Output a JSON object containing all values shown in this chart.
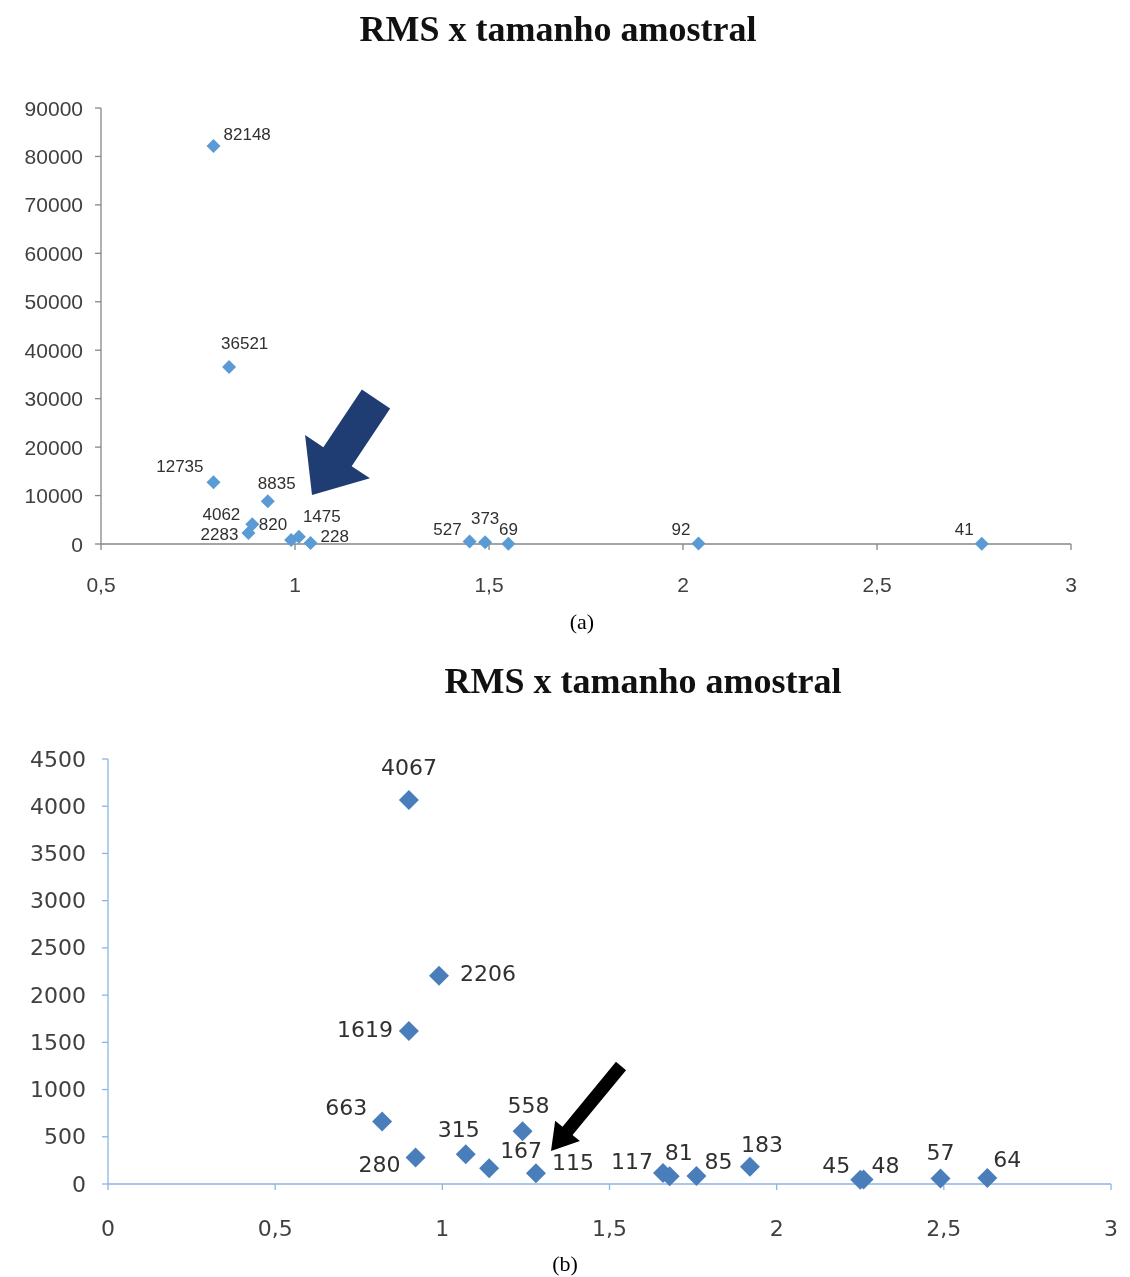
{
  "chart_data": [
    {
      "type": "scatter",
      "title": "RMS x tamanho amostral",
      "x": [
        0.79,
        0.79,
        0.83,
        0.88,
        0.89,
        0.93,
        0.99,
        1.01,
        1.04,
        1.45,
        1.49,
        1.55,
        2.04,
        2.77
      ],
      "values": [
        82148,
        12735,
        36521,
        2283,
        4062,
        8835,
        820,
        1475,
        228,
        527,
        373,
        69,
        92,
        41
      ],
      "color": "#5b9bd5",
      "marker": "diamond",
      "data_labels": true,
      "xlim": [
        0.5,
        3
      ],
      "xticks": [
        {
          "value": 0.5,
          "label": "0,5"
        },
        1,
        {
          "value": 1.5,
          "label": "1,5"
        },
        2,
        {
          "value": 2.5,
          "label": "2,5"
        },
        3
      ],
      "ylim": [
        0,
        90000
      ],
      "yticks": [
        0,
        10000,
        20000,
        30000,
        40000,
        50000,
        60000,
        70000,
        80000,
        90000
      ],
      "annotations": [
        "(a)"
      ]
    },
    {
      "type": "scatter",
      "title": "RMS x tamanho amostral",
      "x": [
        0.9,
        0.99,
        0.9,
        0.82,
        0.92,
        1.07,
        1.14,
        1.24,
        1.28,
        1.66,
        1.68,
        1.76,
        1.92,
        2.25,
        2.26,
        2.49,
        2.63
      ],
      "values": [
        4067,
        2206,
        1619,
        663,
        280,
        315,
        167,
        558,
        115,
        117,
        81,
        85,
        183,
        45,
        48,
        57,
        64
      ],
      "color": "#4a7ebb",
      "marker": "diamond",
      "data_labels": true,
      "xlim": [
        0,
        3
      ],
      "xticks": [
        0,
        {
          "value": 0.5,
          "label": "0,5"
        },
        1,
        {
          "value": 1.5,
          "label": "1,5"
        },
        2,
        {
          "value": 2.5,
          "label": "2,5"
        },
        3
      ],
      "ylim": [
        0,
        4500
      ],
      "yticks": [
        0,
        500,
        1000,
        1500,
        2000,
        2500,
        3000,
        3500,
        4000,
        4500
      ],
      "annotations": [
        "(b)"
      ]
    }
  ]
}
